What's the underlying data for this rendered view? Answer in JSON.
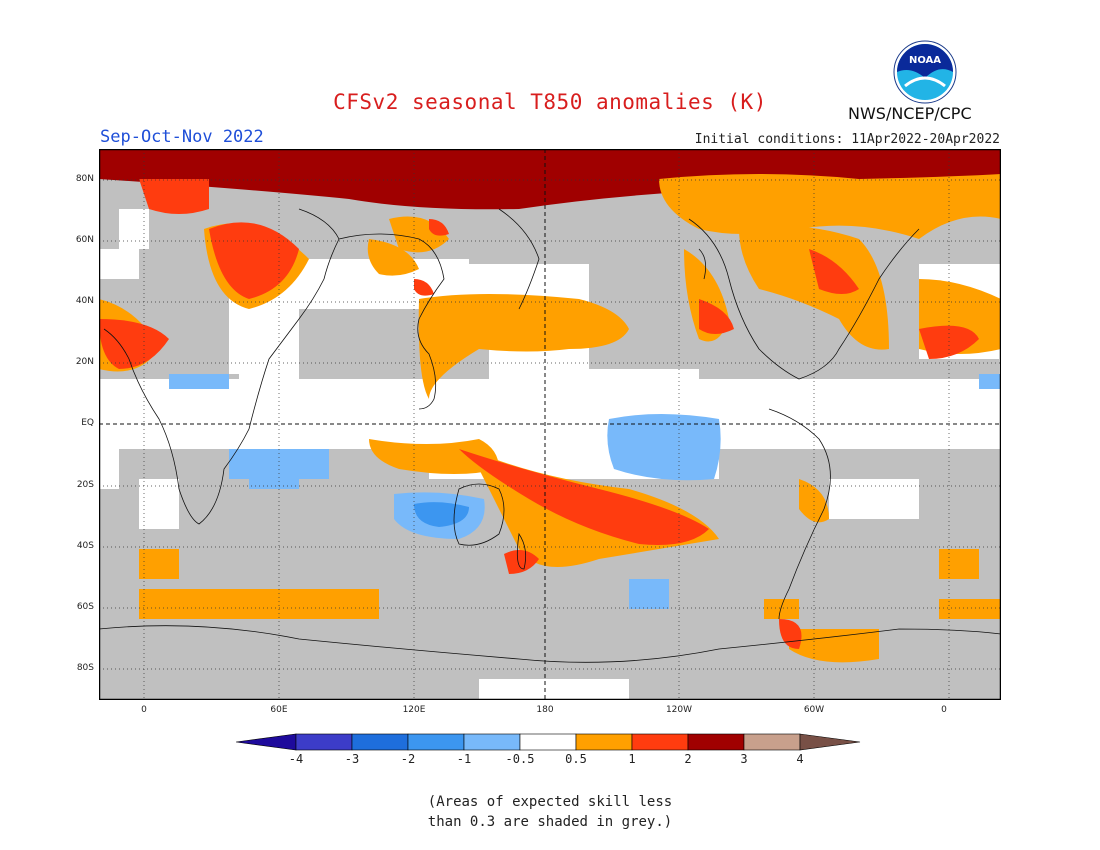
{
  "title": "CFSv2 seasonal T850 anomalies (K)",
  "season": "Sep-Oct-Nov 2022",
  "initial_conditions": "Initial conditions: 11Apr2022-20Apr2022",
  "agency": "NWS/NCEP/CPC",
  "logo_text": "NOAA",
  "map": {
    "projection": "cylindrical-equidistant",
    "lon_range": [
      -20,
      380
    ],
    "lat_range": [
      -90,
      90
    ],
    "latitude_labels": [
      "80N",
      "60N",
      "40N",
      "20N",
      "EQ",
      "20S",
      "40S",
      "60S",
      "80S"
    ],
    "latitude_values": [
      80,
      60,
      40,
      20,
      0,
      -20,
      -40,
      -60,
      -80
    ],
    "longitude_labels": [
      "0",
      "60E",
      "120E",
      "180",
      "120W",
      "60W",
      "0"
    ],
    "longitude_values": [
      0,
      60,
      120,
      180,
      240,
      300,
      360
    ],
    "grid": "dotted",
    "land_colour": "#c0c0c0",
    "ocean_colour": "#ffffff"
  },
  "colorbar": {
    "labels": [
      "-4",
      "-3",
      "-2",
      "-1",
      "-0.5",
      "0.5",
      "1",
      "2",
      "3",
      "4"
    ],
    "colors": [
      "#1e0a9c",
      "#3c3cc8",
      "#1e6edc",
      "#3c96f0",
      "#78b9fa",
      "#ffffff",
      "#ffa000",
      "#ff3c0f",
      "#a00000",
      "#c8a08c",
      "#785046"
    ]
  },
  "footnote": {
    "line1": "(Areas of expected skill less",
    "line2": "than 0.3 are shaded in grey.)"
  }
}
